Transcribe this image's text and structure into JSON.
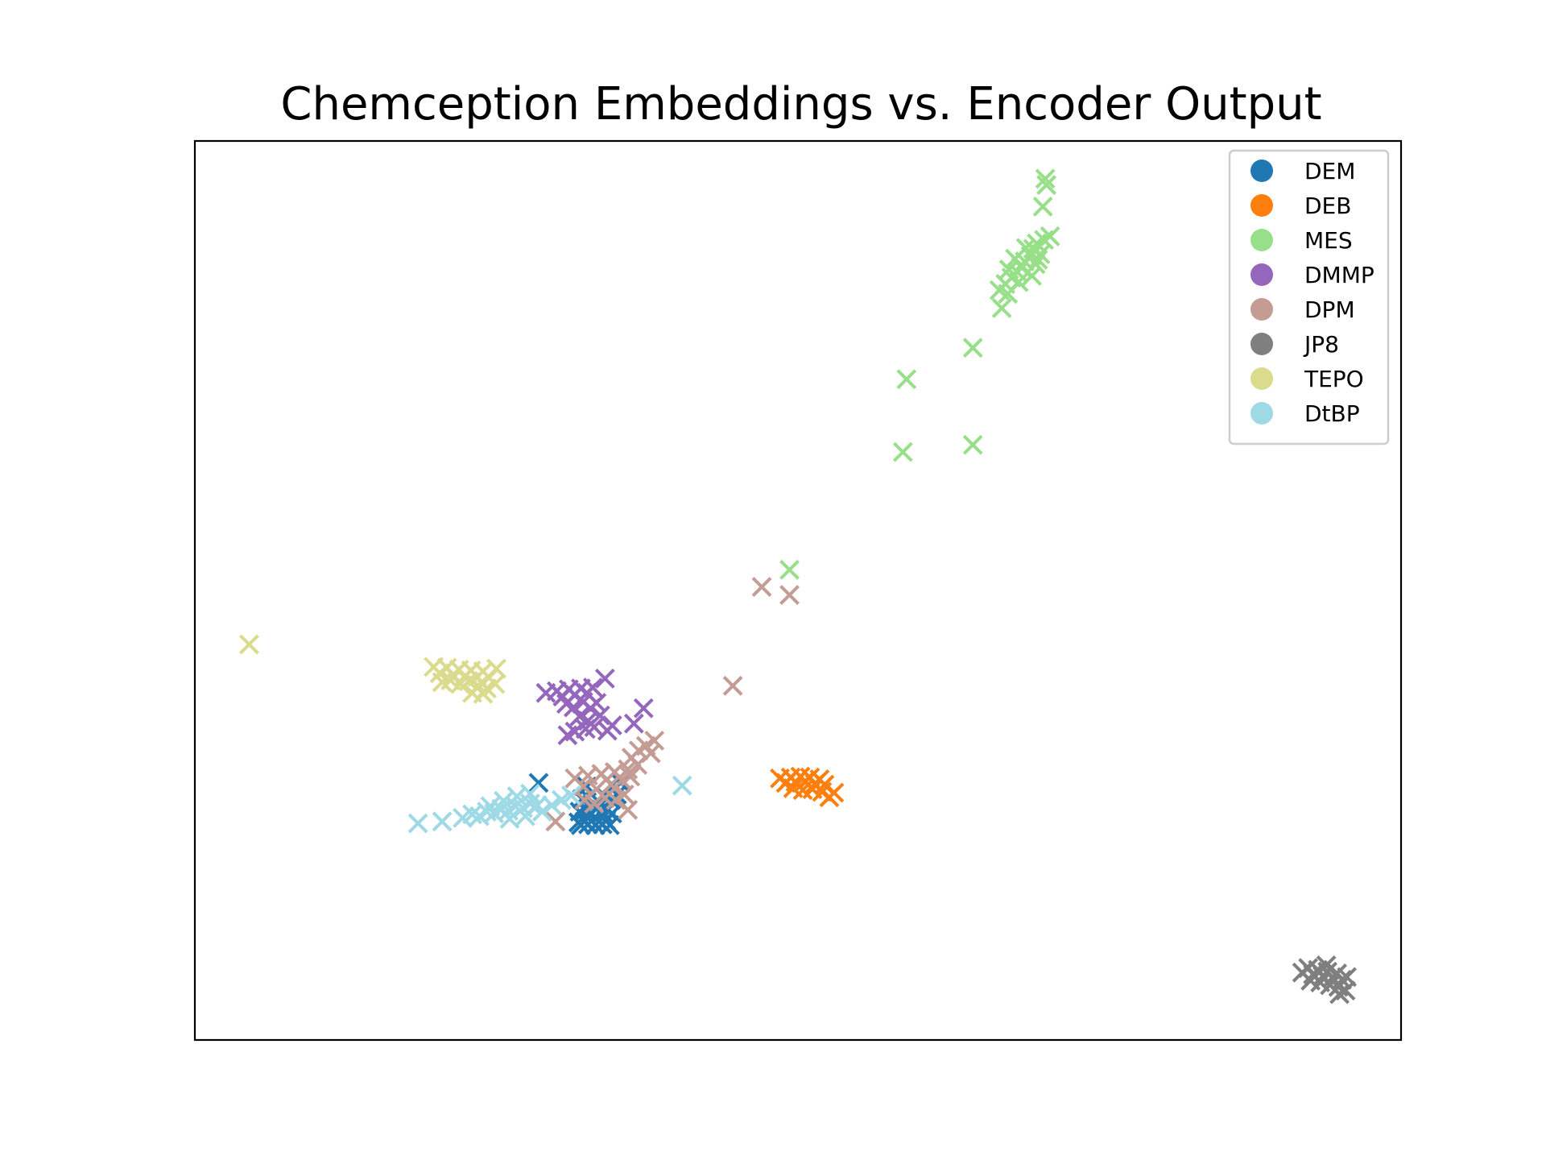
{
  "chart_data": {
    "type": "scatter",
    "title": "Chemception Embeddings vs. Encoder Output",
    "xlabel": "",
    "ylabel": "",
    "xlim": [
      0,
      100
    ],
    "ylim": [
      0,
      100
    ],
    "grid": false,
    "axis_ticks": false,
    "legend_position": "top-right",
    "legend_marker": "circle",
    "point_marker": "x",
    "series": [
      {
        "name": "DEM",
        "color": "#1f77b4",
        "points": [
          [
            28.5,
            28.6
          ],
          [
            31.8,
            24.2
          ],
          [
            32.0,
            23.9
          ],
          [
            32.3,
            24.3
          ],
          [
            32.6,
            24.0
          ],
          [
            32.9,
            24.4
          ],
          [
            33.2,
            23.9
          ],
          [
            33.5,
            24.3
          ],
          [
            33.8,
            24.0
          ],
          [
            34.1,
            24.4
          ],
          [
            34.4,
            23.9
          ],
          [
            31.9,
            25.4
          ],
          [
            32.4,
            25.6
          ],
          [
            32.8,
            25.2
          ],
          [
            33.3,
            25.7
          ],
          [
            33.8,
            25.3
          ],
          [
            34.2,
            25.6
          ],
          [
            34.6,
            25.2
          ],
          [
            32.1,
            26.8
          ],
          [
            32.6,
            27.0
          ],
          [
            33.4,
            26.6
          ],
          [
            34.0,
            27.1
          ],
          [
            34.5,
            26.7
          ],
          [
            35.0,
            27.3
          ],
          [
            32.5,
            28.2
          ],
          [
            34.6,
            28.4
          ],
          [
            35.3,
            28.6
          ]
        ]
      },
      {
        "name": "DEB",
        "color": "#ff7f0e",
        "points": [
          [
            48.5,
            29.1
          ],
          [
            49.0,
            28.6
          ],
          [
            49.4,
            29.2
          ],
          [
            49.8,
            28.7
          ],
          [
            50.2,
            29.3
          ],
          [
            50.6,
            28.8
          ],
          [
            51.0,
            29.2
          ],
          [
            51.4,
            28.5
          ],
          [
            51.8,
            29.0
          ],
          [
            52.2,
            28.4
          ],
          [
            49.6,
            28.0
          ],
          [
            50.4,
            27.8
          ],
          [
            51.2,
            27.9
          ],
          [
            52.0,
            27.6
          ],
          [
            52.6,
            27.0
          ],
          [
            53.0,
            27.5
          ]
        ]
      },
      {
        "name": "MES",
        "color": "#98df8a",
        "points": [
          [
            70.5,
            95.8
          ],
          [
            70.6,
            95.1
          ],
          [
            70.3,
            92.7
          ],
          [
            70.9,
            89.4
          ],
          [
            70.4,
            89.0
          ],
          [
            69.8,
            88.6
          ],
          [
            69.5,
            88.0
          ],
          [
            69.3,
            87.2
          ],
          [
            68.8,
            86.6
          ],
          [
            68.5,
            86.0
          ],
          [
            68.2,
            85.4
          ],
          [
            67.7,
            84.8
          ],
          [
            67.2,
            84.1
          ],
          [
            66.7,
            83.4
          ],
          [
            69.7,
            86.3
          ],
          [
            70.1,
            87.4
          ],
          [
            68.9,
            88.1
          ],
          [
            68.0,
            86.9
          ],
          [
            67.5,
            85.7
          ],
          [
            69.4,
            85.0
          ],
          [
            69.9,
            86.8
          ],
          [
            68.3,
            84.3
          ],
          [
            67.4,
            83.0
          ],
          [
            66.9,
            81.4
          ],
          [
            64.5,
            77.0
          ],
          [
            59.0,
            73.5
          ],
          [
            58.7,
            65.4
          ],
          [
            64.5,
            66.2
          ],
          [
            49.3,
            52.3
          ]
        ]
      },
      {
        "name": "DMMP",
        "color": "#9467bd",
        "points": [
          [
            29.1,
            38.6
          ],
          [
            30.0,
            38.8
          ],
          [
            30.5,
            38.2
          ],
          [
            31.0,
            39.0
          ],
          [
            31.5,
            38.4
          ],
          [
            32.0,
            39.1
          ],
          [
            32.5,
            38.6
          ],
          [
            33.0,
            39.2
          ],
          [
            34.0,
            40.2
          ],
          [
            30.8,
            37.4
          ],
          [
            31.4,
            37.0
          ],
          [
            32.2,
            37.6
          ],
          [
            32.8,
            36.9
          ],
          [
            33.3,
            37.5
          ],
          [
            31.9,
            36.0
          ],
          [
            32.6,
            35.5
          ],
          [
            33.6,
            36.1
          ],
          [
            34.6,
            35.0
          ],
          [
            33.1,
            34.8
          ],
          [
            34.2,
            34.4
          ],
          [
            32.4,
            34.6
          ],
          [
            31.5,
            34.3
          ],
          [
            30.9,
            33.9
          ],
          [
            37.2,
            36.9
          ],
          [
            36.4,
            35.2
          ]
        ]
      },
      {
        "name": "DPM",
        "color": "#c49c94",
        "points": [
          [
            47.0,
            50.4
          ],
          [
            49.3,
            49.5
          ],
          [
            44.6,
            39.4
          ],
          [
            38.1,
            33.3
          ],
          [
            37.4,
            32.7
          ],
          [
            37.8,
            31.9
          ],
          [
            36.8,
            32.2
          ],
          [
            36.2,
            31.4
          ],
          [
            36.7,
            30.6
          ],
          [
            35.9,
            30.1
          ],
          [
            34.8,
            29.8
          ],
          [
            33.7,
            29.6
          ],
          [
            32.6,
            29.4
          ],
          [
            31.5,
            29.1
          ],
          [
            32.2,
            28.2
          ],
          [
            33.3,
            27.9
          ],
          [
            34.5,
            28.4
          ],
          [
            35.4,
            28.9
          ],
          [
            36.1,
            29.3
          ],
          [
            34.9,
            26.7
          ],
          [
            35.6,
            27.3
          ],
          [
            35.9,
            25.6
          ],
          [
            34.0,
            26.9
          ],
          [
            33.1,
            26.3
          ],
          [
            32.3,
            26.7
          ],
          [
            29.9,
            24.3
          ]
        ]
      },
      {
        "name": "JP8",
        "color": "#7f7f7f",
        "points": [
          [
            91.8,
            7.5
          ],
          [
            92.3,
            8.0
          ],
          [
            92.7,
            7.3
          ],
          [
            93.1,
            7.8
          ],
          [
            93.5,
            7.1
          ],
          [
            93.9,
            7.6
          ],
          [
            94.3,
            6.9
          ],
          [
            94.7,
            7.4
          ],
          [
            95.1,
            6.7
          ],
          [
            95.5,
            7.0
          ],
          [
            92.5,
            6.6
          ],
          [
            93.3,
            6.4
          ],
          [
            94.1,
            6.1
          ],
          [
            94.8,
            5.9
          ],
          [
            95.4,
            5.5
          ],
          [
            93.8,
            8.3
          ],
          [
            94.9,
            5.1
          ]
        ]
      },
      {
        "name": "TEPO",
        "color": "#dbdb8d",
        "points": [
          [
            4.5,
            44.0
          ],
          [
            19.8,
            41.5
          ],
          [
            20.3,
            40.8
          ],
          [
            20.9,
            41.4
          ],
          [
            21.4,
            40.6
          ],
          [
            21.9,
            41.2
          ],
          [
            22.4,
            40.5
          ],
          [
            22.9,
            41.1
          ],
          [
            23.4,
            40.4
          ],
          [
            23.9,
            41.0
          ],
          [
            24.4,
            40.3
          ],
          [
            25.0,
            41.3
          ],
          [
            20.5,
            39.8
          ],
          [
            21.2,
            40.0
          ],
          [
            22.0,
            39.6
          ],
          [
            22.7,
            39.9
          ],
          [
            23.5,
            39.4
          ],
          [
            24.2,
            39.1
          ],
          [
            24.9,
            39.6
          ],
          [
            23.0,
            38.6
          ],
          [
            23.9,
            38.5
          ]
        ]
      },
      {
        "name": "DtBP",
        "color": "#9edae5",
        "points": [
          [
            18.5,
            24.1
          ],
          [
            20.5,
            24.3
          ],
          [
            22.2,
            24.7
          ],
          [
            23.0,
            25.1
          ],
          [
            23.6,
            24.9
          ],
          [
            24.2,
            25.4
          ],
          [
            24.8,
            25.2
          ],
          [
            25.4,
            25.7
          ],
          [
            26.0,
            25.5
          ],
          [
            26.6,
            26.0
          ],
          [
            27.2,
            25.8
          ],
          [
            27.8,
            26.3
          ],
          [
            28.4,
            26.1
          ],
          [
            24.5,
            26.0
          ],
          [
            25.6,
            26.6
          ],
          [
            26.7,
            27.1
          ],
          [
            27.8,
            27.4
          ],
          [
            26.1,
            24.6
          ],
          [
            27.4,
            24.9
          ],
          [
            28.8,
            25.4
          ],
          [
            29.6,
            26.1
          ],
          [
            30.4,
            26.7
          ],
          [
            31.2,
            27.2
          ],
          [
            40.4,
            28.3
          ]
        ]
      }
    ]
  }
}
